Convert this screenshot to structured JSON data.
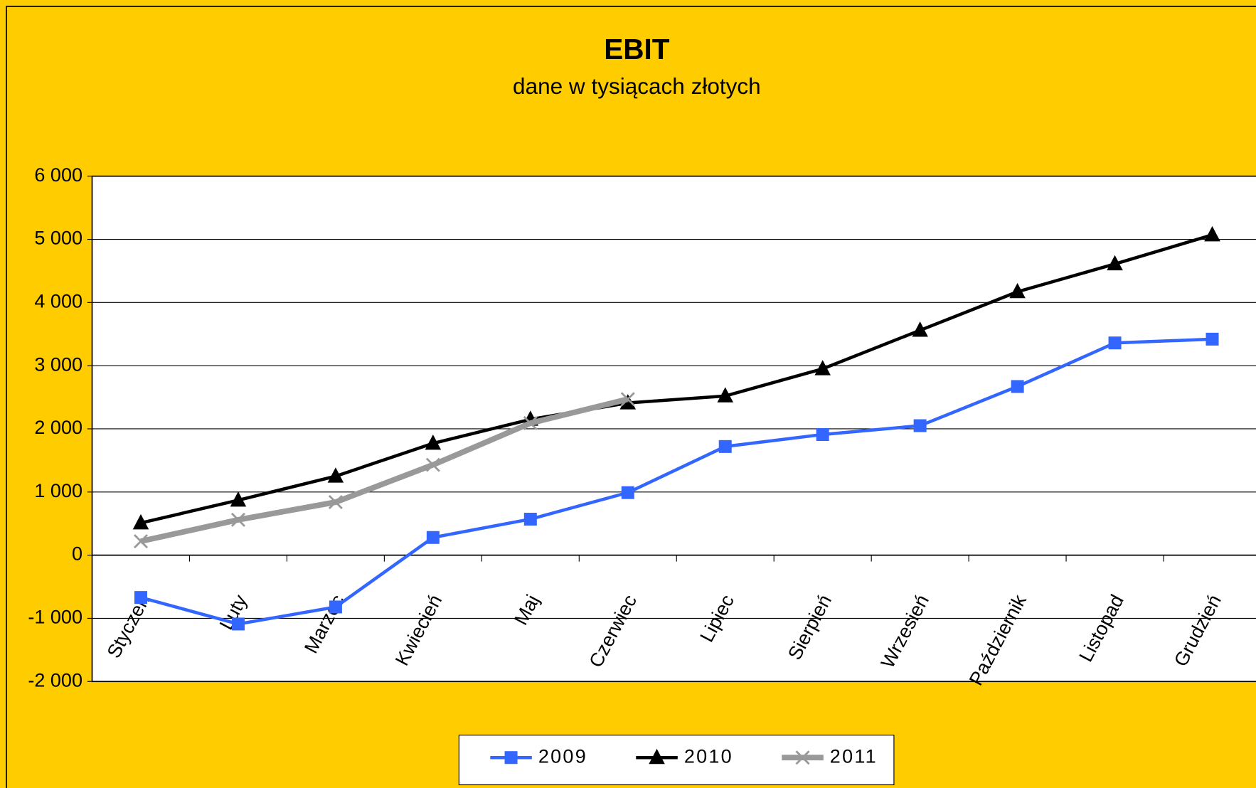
{
  "chart_data": {
    "type": "line",
    "title": "EBIT",
    "subtitle": "dane w tysiącach złotych",
    "categories": [
      "Styczeń",
      "Luty",
      "Marzec",
      "Kwiecień",
      "Maj",
      "Czerwiec",
      "Lipiec",
      "Sierpień",
      "Wrzesień",
      "Październik",
      "Listopad",
      "Grudzień"
    ],
    "series": [
      {
        "name": "2009",
        "color": "#3366ff",
        "marker": "square",
        "values": [
          -670,
          -1090,
          -820,
          280,
          570,
          990,
          1720,
          1910,
          2050,
          2670,
          3360,
          3420
        ]
      },
      {
        "name": "2010",
        "color": "#000000",
        "marker": "triangle",
        "values": [
          510,
          870,
          1250,
          1770,
          2150,
          2410,
          2520,
          2950,
          3560,
          4170,
          4610,
          5070
        ]
      },
      {
        "name": "2011",
        "color": "#999999",
        "marker": "x",
        "values": [
          220,
          560,
          840,
          1430,
          2090,
          2470,
          null,
          null,
          null,
          null,
          null,
          null
        ]
      }
    ],
    "ylim": [
      -2000,
      6000
    ],
    "yticks": [
      {
        "value": -2000,
        "label": "-2 000"
      },
      {
        "value": -1000,
        "label": "-1 000"
      },
      0,
      {
        "value": 1000,
        "label": "1 000"
      },
      {
        "value": 2000,
        "label": "2 000"
      },
      {
        "value": 3000,
        "label": "3 000"
      },
      {
        "value": 4000,
        "label": "4 000"
      },
      {
        "value": 5000,
        "label": "5 000"
      },
      {
        "value": 6000,
        "label": "6 000"
      }
    ],
    "grid": true,
    "legend": "bottom"
  }
}
